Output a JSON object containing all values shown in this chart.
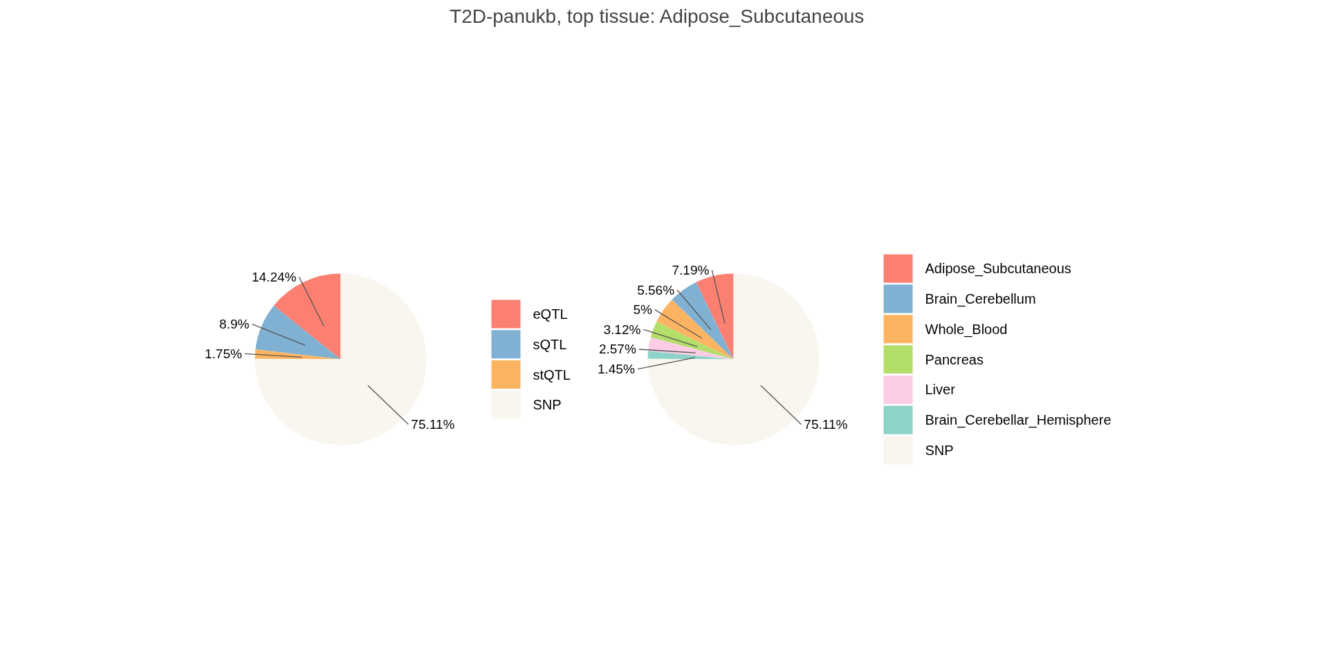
{
  "chart_data": [
    {
      "type": "pie",
      "categories": [
        "eQTL",
        "sQTL",
        "stQTL",
        "SNP"
      ],
      "values": [
        14.24,
        8.9,
        1.75,
        75.11
      ],
      "colors": [
        "#fb8072",
        "#80b1d3",
        "#fdb462",
        "#f9f5ef"
      ],
      "value_labels": [
        "14.24%",
        "8.9%",
        "1.75%",
        "75.11%"
      ],
      "legend": "right"
    },
    {
      "type": "pie",
      "title": "T2D-panukb, top tissue: Adipose_Subcutaneous",
      "categories": [
        "Adipose_Subcutaneous",
        "Brain_Cerebellum",
        "Whole_Blood",
        "Pancreas",
        "Liver",
        "Brain_Cerebellar_Hemisphere",
        "SNP"
      ],
      "values": [
        7.19,
        5.56,
        5,
        3.12,
        2.57,
        1.45,
        75.11
      ],
      "colors": [
        "#fb8072",
        "#80b1d3",
        "#fdb462",
        "#b3de69",
        "#fccde5",
        "#8dd3c7",
        "#f9f5ef"
      ],
      "value_labels": [
        "7.19%",
        "5.56%",
        "5%",
        "3.12%",
        "2.57%",
        "1.45%",
        "75.11%"
      ],
      "legend": "right"
    }
  ]
}
